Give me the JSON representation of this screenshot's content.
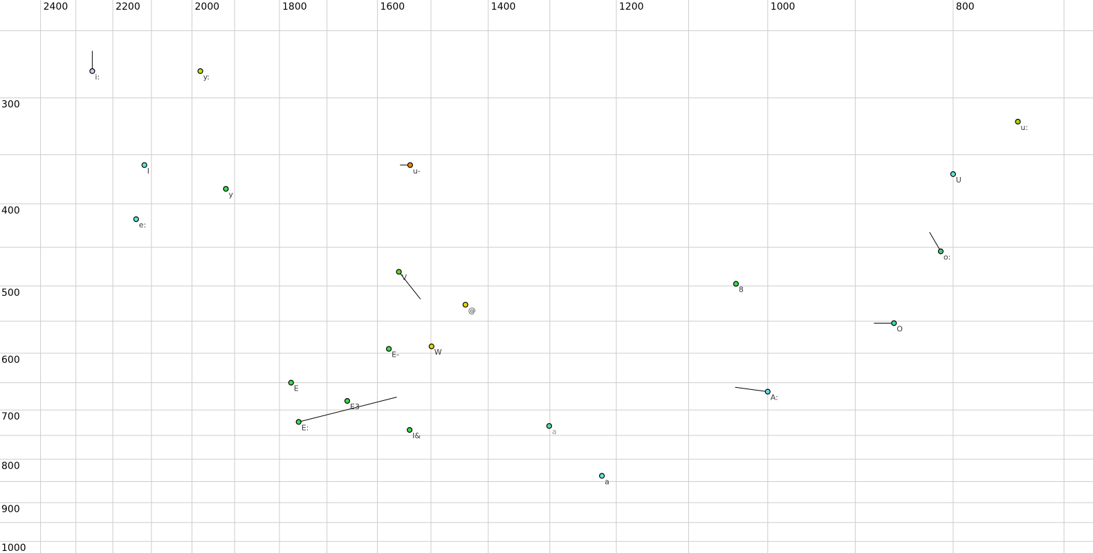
{
  "chart_data": {
    "type": "scatter",
    "description": "Vowel formant plot: F2 (Hz) on reversed log x-axis, F1 (Hz) on log y-axis increasing downward",
    "x_axis": {
      "unit": "Hz",
      "scale": "log",
      "reversed": true,
      "range": [
        2520,
        676
      ],
      "grid_min": 700,
      "grid_max": 2400,
      "grid_step": 100,
      "tick_labels": [
        "2400",
        "2200",
        "2000",
        "1800",
        "1600",
        "1400",
        "1200",
        "1000",
        "800"
      ],
      "tick_values": [
        2400,
        2200,
        2000,
        1800,
        1600,
        1400,
        1200,
        1000,
        800
      ]
    },
    "y_axis": {
      "unit": "Hz",
      "scale": "log",
      "increases_downward": true,
      "range": [
        230,
        1032
      ],
      "grid_min": 250,
      "grid_max": 1000,
      "grid_step": 50,
      "tick_labels": [
        "300",
        "400",
        "500",
        "600",
        "700",
        "800",
        "900",
        "1000"
      ],
      "tick_values": [
        300,
        400,
        500,
        600,
        700,
        800,
        900,
        1000
      ]
    },
    "points": [
      {
        "label": "i:",
        "f2": 2255,
        "f1": 279,
        "fill": "#ccccee",
        "trajectory": {
          "f2": 2255,
          "f1": 264
        }
      },
      {
        "label": "y:",
        "f2": 1980,
        "f1": 279,
        "fill": "#c4e400"
      },
      {
        "label": "I",
        "f2": 2118,
        "f1": 360,
        "fill": "#5ce8d8"
      },
      {
        "label": "y",
        "f2": 1920,
        "f1": 384,
        "fill": "#3add4a"
      },
      {
        "label": "e:",
        "f2": 2139,
        "f1": 417,
        "fill": "#5ce8d8"
      },
      {
        "label": "u-",
        "f2": 1538,
        "f1": 360,
        "fill": "#ee8800",
        "trajectory": {
          "f2": 1557,
          "f1": 360
        }
      },
      {
        "label": "V",
        "f2": 1559,
        "f1": 481,
        "fill": "#55dd22",
        "trajectory": {
          "f2": 1519,
          "f1": 518
        }
      },
      {
        "label": "@",
        "f2": 1439,
        "f1": 526,
        "fill": "#e8d800"
      },
      {
        "label": "E-",
        "f2": 1578,
        "f1": 593,
        "fill": "#3add4a"
      },
      {
        "label": "W",
        "f2": 1499,
        "f1": 589,
        "fill": "#e8d800"
      },
      {
        "label": "E",
        "f2": 1775,
        "f1": 650,
        "fill": "#3add4a"
      },
      {
        "label": "E3",
        "f2": 1659,
        "f1": 683,
        "fill": "#3add4a"
      },
      {
        "label": "E:",
        "f2": 1759,
        "f1": 723,
        "fill": "#3add4a",
        "trajectory": {
          "f2": 1563,
          "f1": 676
        }
      },
      {
        "label": "I&",
        "f2": 1539,
        "f1": 739,
        "fill": "#3add4a"
      },
      {
        "label": "a",
        "f2": 1301,
        "f1": 731,
        "fill": "#55dd99",
        "label_color": "#9a9a9a"
      },
      {
        "label": "a",
        "f2": 1221,
        "f1": 837,
        "fill": "#5ce8d8"
      },
      {
        "label": "A:",
        "f2": 1000,
        "f1": 666,
        "fill": "#66d9ee",
        "trajectory": {
          "f2": 1040,
          "f1": 658
        }
      },
      {
        "label": "8",
        "f2": 1039,
        "f1": 497,
        "fill": "#3add4a"
      },
      {
        "label": "O",
        "f2": 859,
        "f1": 553,
        "fill": "#3fd9a6",
        "trajectory": {
          "f2": 880,
          "f1": 553
        }
      },
      {
        "label": "o:",
        "f2": 812,
        "f1": 455,
        "fill": "#44cc82",
        "trajectory": {
          "f2": 823,
          "f1": 432
        }
      },
      {
        "label": "U",
        "f2": 800,
        "f1": 369,
        "fill": "#5ce8d8"
      },
      {
        "label": "u:",
        "f2": 740,
        "f1": 320,
        "fill": "#a8dc00"
      }
    ],
    "colors": {
      "background": "#ffffff",
      "grid": "#cccccc",
      "tick_text": "#000000",
      "point_label": "#3a3a3a",
      "point_outline": "#000000",
      "trajectory": "#000000"
    }
  }
}
